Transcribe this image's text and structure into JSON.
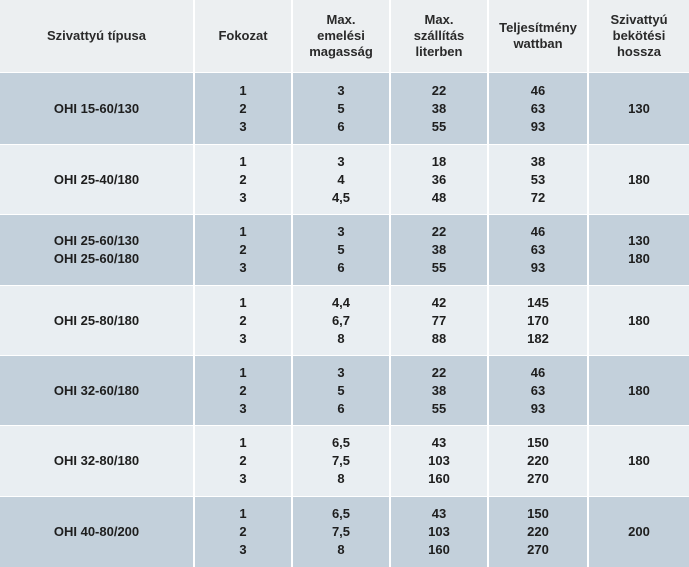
{
  "headers": {
    "type": "Szivattyú típusa",
    "speed": "Fokozat",
    "head_l1": "Max.",
    "head_l2": "emelési",
    "head_l3": "magasság",
    "flow_l1": "Max.",
    "flow_l2": "szállítás",
    "flow_l3": "literben",
    "power_l1": "Teljesítmény",
    "power_l2": "wattban",
    "len_l1": "Szivattyú",
    "len_l2": "bekötési",
    "len_l3": "hossza"
  },
  "rows": [
    {
      "types": [
        "OHI 15-60/130"
      ],
      "speeds": [
        "1",
        "2",
        "3"
      ],
      "heads": [
        "3",
        "5",
        "6"
      ],
      "flows": [
        "22",
        "38",
        "55"
      ],
      "powers": [
        "46",
        "63",
        "93"
      ],
      "lengths": [
        "130"
      ]
    },
    {
      "types": [
        "OHI 25-40/180"
      ],
      "speeds": [
        "1",
        "2",
        "3"
      ],
      "heads": [
        "3",
        "4",
        "4,5"
      ],
      "flows": [
        "18",
        "36",
        "48"
      ],
      "powers": [
        "38",
        "53",
        "72"
      ],
      "lengths": [
        "180"
      ]
    },
    {
      "types": [
        "OHI 25-60/130",
        "OHI 25-60/180"
      ],
      "speeds": [
        "1",
        "2",
        "3"
      ],
      "heads": [
        "3",
        "5",
        "6"
      ],
      "flows": [
        "22",
        "38",
        "55"
      ],
      "powers": [
        "46",
        "63",
        "93"
      ],
      "lengths": [
        "130",
        "180"
      ]
    },
    {
      "types": [
        "OHI 25-80/180"
      ],
      "speeds": [
        "1",
        "2",
        "3"
      ],
      "heads": [
        "4,4",
        "6,7",
        "8"
      ],
      "flows": [
        "42",
        "77",
        "88"
      ],
      "powers": [
        "145",
        "170",
        "182"
      ],
      "lengths": [
        "180"
      ]
    },
    {
      "types": [
        "OHI 32-60/180"
      ],
      "speeds": [
        "1",
        "2",
        "3"
      ],
      "heads": [
        "3",
        "5",
        "6"
      ],
      "flows": [
        "22",
        "38",
        "55"
      ],
      "powers": [
        "46",
        "63",
        "93"
      ],
      "lengths": [
        "180"
      ]
    },
    {
      "types": [
        "OHI 32-80/180"
      ],
      "speeds": [
        "1",
        "2",
        "3"
      ],
      "heads": [
        "6,5",
        "7,5",
        "8"
      ],
      "flows": [
        "43",
        "103",
        "160"
      ],
      "powers": [
        "150",
        "220",
        "270"
      ],
      "lengths": [
        "180"
      ]
    },
    {
      "types": [
        "OHI 40-80/200"
      ],
      "speeds": [
        "1",
        "2",
        "3"
      ],
      "heads": [
        "6,5",
        "7,5",
        "8"
      ],
      "flows": [
        "43",
        "103",
        "160"
      ],
      "powers": [
        "150",
        "220",
        "270"
      ],
      "lengths": [
        "200"
      ]
    }
  ],
  "colors": {
    "header_bg": "#eceff1",
    "band_dark": "#c3d0db",
    "band_light": "#e9eef2",
    "text": "#1e1e1e"
  }
}
